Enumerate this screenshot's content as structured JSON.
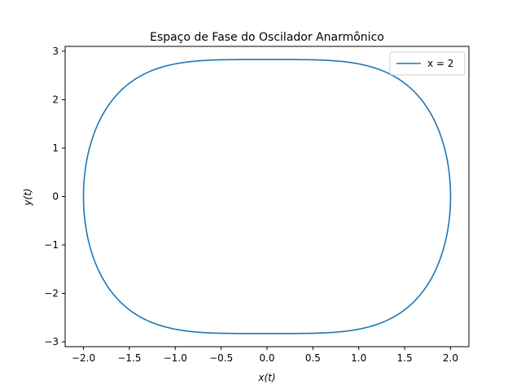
{
  "chart_data": {
    "type": "line",
    "title": "Espaço de Fase do Oscilador Anarmônico",
    "xlabel": "x(t)",
    "ylabel": "y(t)",
    "xlim": [
      -2.2,
      2.2
    ],
    "ylim": [
      -3.1,
      3.1
    ],
    "xticks": [
      -2.0,
      -1.5,
      -1.0,
      -0.5,
      0.0,
      0.5,
      1.0,
      1.5,
      2.0
    ],
    "xtick_labels": [
      "−2.0",
      "−1.5",
      "−1.0",
      "−0.5",
      "0.0",
      "0.5",
      "1.0",
      "1.5",
      "2.0"
    ],
    "yticks": [
      -3,
      -2,
      -1,
      0,
      1,
      2,
      3
    ],
    "ytick_labels": [
      "−3",
      "−2",
      "−1",
      "0",
      "1",
      "2",
      "3"
    ],
    "grid": false,
    "legend_position": "top-right",
    "series": [
      {
        "name": "x = 2",
        "color": "#1f77b4",
        "curve": "closed phase-space orbit, y^2 = (16 - x^4)/2",
        "amplitude_x": 2.0,
        "max_y": 2.83
      }
    ]
  }
}
